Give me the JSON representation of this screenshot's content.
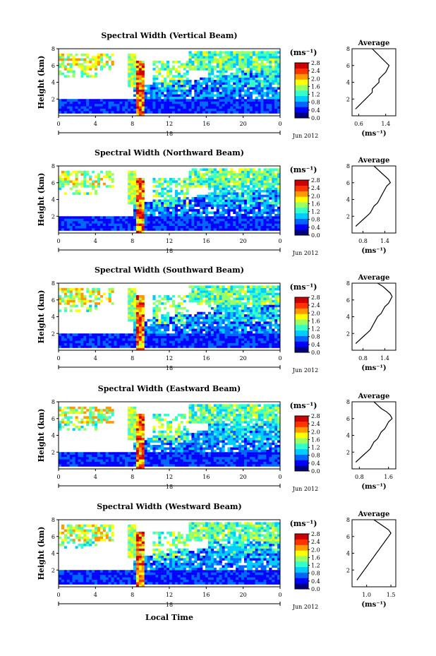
{
  "shared": {
    "ylabel": "Height (km)",
    "ylim": [
      0,
      8
    ],
    "y_ticks": [
      2,
      4,
      6,
      8
    ],
    "x_ticks": [
      "0",
      "4",
      "8",
      "12",
      "16",
      "20",
      "0"
    ],
    "day_label": "18",
    "date_label": "Jun 2012",
    "colorbar_unit": "(ms⁻¹)",
    "colorbar_range": [
      0.0,
      2.8
    ],
    "colormap": [
      "#000080",
      "#0000ff",
      "#0066ff",
      "#00ccff",
      "#33ffcc",
      "#99ff66",
      "#ffff00",
      "#ff9900",
      "#ff3300",
      "#cc0000"
    ],
    "avg_title": "Average",
    "avg_xlabel": "(ms⁻¹)",
    "xlabel": "Local Time"
  },
  "chart_data": [
    {
      "type": "heatmap",
      "title": "Spectral Width (Vertical Beam)",
      "colorbar_ticks": [
        "2.8",
        "2.4",
        "2.0",
        "1.6",
        "1.2",
        "0.8",
        "0.4",
        "0.0"
      ],
      "avg_xticks": [
        "0.6",
        "1.4"
      ],
      "avg_xlim": [
        0.4,
        1.7
      ],
      "avg_profile": [
        [
          0.5,
          0.8
        ],
        [
          0.6,
          1.2
        ],
        [
          0.7,
          1.6
        ],
        [
          0.8,
          2.0
        ],
        [
          0.9,
          2.4
        ],
        [
          1.0,
          2.8
        ],
        [
          1.0,
          3.2
        ],
        [
          1.1,
          3.6
        ],
        [
          1.2,
          4.0
        ],
        [
          1.2,
          4.4
        ],
        [
          1.3,
          4.8
        ],
        [
          1.4,
          5.2
        ],
        [
          1.45,
          5.6
        ],
        [
          1.5,
          6.0
        ],
        [
          1.4,
          6.4
        ],
        [
          1.3,
          6.8
        ],
        [
          1.2,
          7.2
        ],
        [
          1.1,
          7.6
        ],
        [
          1.0,
          8.0
        ]
      ]
    },
    {
      "type": "heatmap",
      "title": "Spectral Width (Northward Beam)",
      "colorbar_ticks": [
        "2.8",
        "2.4",
        "2.0",
        "1.6",
        "1.2",
        "0.8",
        "0.4",
        "0.0"
      ],
      "avg_xticks": [
        "0.8",
        "1.4"
      ],
      "avg_xlim": [
        0.5,
        1.7
      ],
      "avg_profile": [
        [
          0.6,
          0.8
        ],
        [
          0.7,
          1.2
        ],
        [
          0.8,
          1.6
        ],
        [
          0.9,
          2.0
        ],
        [
          1.0,
          2.4
        ],
        [
          1.05,
          2.8
        ],
        [
          1.1,
          3.2
        ],
        [
          1.2,
          3.6
        ],
        [
          1.25,
          4.0
        ],
        [
          1.3,
          4.4
        ],
        [
          1.35,
          4.8
        ],
        [
          1.4,
          5.2
        ],
        [
          1.45,
          5.6
        ],
        [
          1.55,
          6.0
        ],
        [
          1.5,
          6.4
        ],
        [
          1.4,
          6.8
        ],
        [
          1.3,
          7.2
        ],
        [
          1.2,
          7.6
        ],
        [
          1.1,
          8.0
        ]
      ]
    },
    {
      "type": "heatmap",
      "title": "Spectral Width (Southward Beam)",
      "colorbar_ticks": [
        "2.8",
        "2.4",
        "2.0",
        "1.6",
        "1.2",
        "0.8",
        "0.4",
        "0.0"
      ],
      "avg_xticks": [
        "0.8",
        "1.4"
      ],
      "avg_xlim": [
        0.5,
        1.7
      ],
      "avg_profile": [
        [
          0.6,
          0.8
        ],
        [
          0.7,
          1.2
        ],
        [
          0.8,
          1.6
        ],
        [
          0.9,
          2.0
        ],
        [
          1.0,
          2.4
        ],
        [
          1.05,
          2.8
        ],
        [
          1.1,
          3.2
        ],
        [
          1.15,
          3.6
        ],
        [
          1.2,
          4.0
        ],
        [
          1.3,
          4.4
        ],
        [
          1.35,
          4.8
        ],
        [
          1.4,
          5.2
        ],
        [
          1.5,
          5.6
        ],
        [
          1.55,
          6.0
        ],
        [
          1.6,
          6.4
        ],
        [
          1.55,
          6.8
        ],
        [
          1.45,
          7.2
        ],
        [
          1.35,
          7.6
        ],
        [
          1.2,
          8.0
        ]
      ]
    },
    {
      "type": "heatmap",
      "title": "Spectral Width (Eastward Beam)",
      "colorbar_ticks": [
        "2.8",
        "2.4",
        "2.0",
        "1.6",
        "1.2",
        "0.8",
        "0.4",
        "0.0"
      ],
      "avg_xticks": [
        "0.8",
        "1.6"
      ],
      "avg_xlim": [
        0.6,
        1.8
      ],
      "avg_profile": [
        [
          0.7,
          0.8
        ],
        [
          0.8,
          1.2
        ],
        [
          0.9,
          1.6
        ],
        [
          1.0,
          2.0
        ],
        [
          1.1,
          2.4
        ],
        [
          1.15,
          2.8
        ],
        [
          1.2,
          3.2
        ],
        [
          1.3,
          3.6
        ],
        [
          1.35,
          4.0
        ],
        [
          1.4,
          4.4
        ],
        [
          1.5,
          4.8
        ],
        [
          1.55,
          5.2
        ],
        [
          1.6,
          5.6
        ],
        [
          1.7,
          6.0
        ],
        [
          1.65,
          6.4
        ],
        [
          1.55,
          6.8
        ],
        [
          1.4,
          7.2
        ],
        [
          1.3,
          7.6
        ],
        [
          1.2,
          8.0
        ]
      ]
    },
    {
      "type": "heatmap",
      "title": "Spectral Width (Westward Beam)",
      "colorbar_ticks": [
        "2.8",
        "2.4",
        "2.0",
        "1.6",
        "1.2",
        "0.8",
        "0.4",
        "0.0"
      ],
      "avg_xticks": [
        "1.0",
        "1.5"
      ],
      "avg_xlim": [
        0.7,
        1.6
      ],
      "avg_profile": [
        [
          0.8,
          0.8
        ],
        [
          0.85,
          1.2
        ],
        [
          0.9,
          1.6
        ],
        [
          0.95,
          2.0
        ],
        [
          1.0,
          2.4
        ],
        [
          1.05,
          2.8
        ],
        [
          1.1,
          3.2
        ],
        [
          1.15,
          3.6
        ],
        [
          1.2,
          4.0
        ],
        [
          1.25,
          4.4
        ],
        [
          1.3,
          4.8
        ],
        [
          1.35,
          5.2
        ],
        [
          1.4,
          5.6
        ],
        [
          1.45,
          6.0
        ],
        [
          1.5,
          6.4
        ],
        [
          1.45,
          6.8
        ],
        [
          1.35,
          7.2
        ],
        [
          1.25,
          7.6
        ],
        [
          1.15,
          8.0
        ]
      ]
    }
  ]
}
